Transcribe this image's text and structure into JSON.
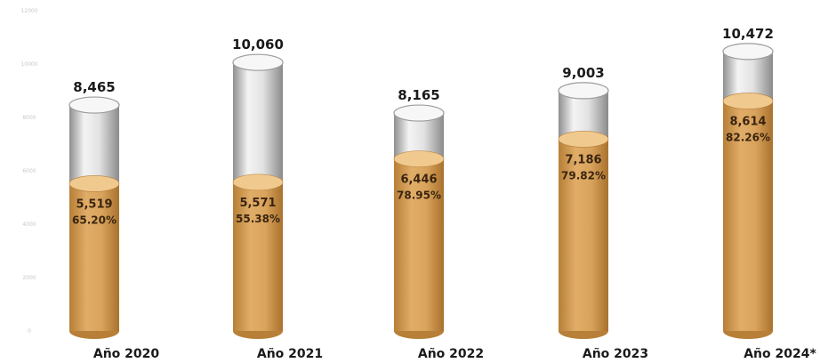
{
  "chart_data": {
    "type": "bar",
    "title": "",
    "xlabel": "",
    "ylabel": "",
    "ylim": [
      0,
      12000
    ],
    "y_ticks": [
      0,
      2000,
      4000,
      6000,
      8000,
      10000,
      12000
    ],
    "grid": false,
    "categories": [
      "Año 2020",
      "Año 2021",
      "Año 2022",
      "Año 2023",
      "Año 2024*"
    ],
    "totals": [
      8465,
      10060,
      8165,
      9003,
      10472
    ],
    "total_labels": [
      "8,465",
      "10,060",
      "8,165",
      "9,003",
      "10,472"
    ],
    "filled": [
      5519,
      5571,
      6446,
      7186,
      8614
    ],
    "filled_labels": [
      "5,519",
      "5,571",
      "6,446",
      "7,186",
      "8,614"
    ],
    "percent_labels": [
      "65.20%",
      "55.38%",
      "78.95%",
      "79.82%",
      "82.26%"
    ],
    "colors": {
      "filled": "#d9a35c",
      "filled_dark": "#b77f37",
      "filled_top": "#f0c98f",
      "unfilled": "#dcdcdc",
      "unfilled_dark": "#9c9c9c",
      "unfilled_top": "#f7f7f7"
    }
  }
}
